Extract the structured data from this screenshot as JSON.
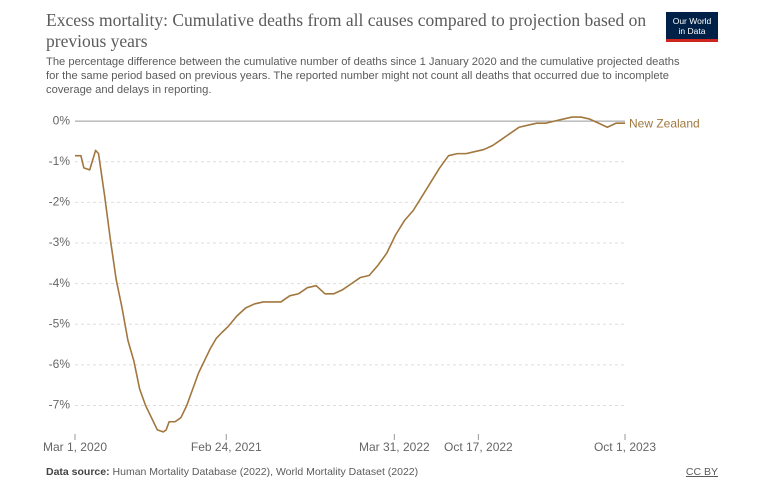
{
  "chart_data": {
    "type": "line",
    "title": "Excess mortality: Cumulative deaths from all causes compared to projection based on previous years",
    "subtitle": "The percentage difference between the cumulative number of deaths since 1 January 2020 and the cumulative projected deaths for the same period based on previous years. The reported number might not count all deaths that occurred due to incomplete coverage and delays in reporting.",
    "logo": [
      "Our World",
      "in Data"
    ],
    "source_label": "Data source:",
    "source": "Human Mortality Database (2022), World Mortality Dataset (2022)",
    "license": "CC BY",
    "x": [
      "2020-03-01",
      "2020-03-15",
      "2020-03-22",
      "2020-04-05",
      "2020-04-19",
      "2020-04-26",
      "2020-05-10",
      "2020-05-24",
      "2020-06-07",
      "2020-06-21",
      "2020-07-05",
      "2020-07-19",
      "2020-08-02",
      "2020-08-16",
      "2020-08-30",
      "2020-09-13",
      "2020-09-27",
      "2020-10-04",
      "2020-10-11",
      "2020-10-25",
      "2020-11-08",
      "2020-11-22",
      "2020-12-06",
      "2020-12-20",
      "2021-01-03",
      "2021-01-17",
      "2021-01-31",
      "2021-02-14",
      "2021-03-01",
      "2021-03-21",
      "2021-04-11",
      "2021-05-02",
      "2021-05-23",
      "2021-06-13",
      "2021-07-04",
      "2021-07-25",
      "2021-08-15",
      "2021-09-05",
      "2021-09-26",
      "2021-10-17",
      "2021-11-07",
      "2021-11-28",
      "2021-12-19",
      "2022-01-09",
      "2022-01-30",
      "2022-02-20",
      "2022-03-13",
      "2022-04-03",
      "2022-04-24",
      "2022-05-15",
      "2022-06-05",
      "2022-06-26",
      "2022-07-17",
      "2022-08-07",
      "2022-08-28",
      "2022-09-18",
      "2022-10-09",
      "2022-10-30",
      "2022-11-20",
      "2022-12-11",
      "2023-01-01",
      "2023-01-22",
      "2023-02-12",
      "2023-03-05",
      "2023-03-26",
      "2023-04-16",
      "2023-05-07",
      "2023-05-28",
      "2023-06-18",
      "2023-07-09",
      "2023-07-30",
      "2023-08-20",
      "2023-09-10",
      "2023-10-01"
    ],
    "series": [
      {
        "name": "New Zealand",
        "color": "#a2773e",
        "values": [
          -0.85,
          -0.85,
          -1.15,
          -1.2,
          -0.72,
          -0.8,
          -1.8,
          -2.9,
          -3.9,
          -4.6,
          -5.4,
          -5.9,
          -6.6,
          -7.0,
          -7.3,
          -7.6,
          -7.65,
          -7.6,
          -7.4,
          -7.4,
          -7.3,
          -7.0,
          -6.6,
          -6.2,
          -5.9,
          -5.6,
          -5.35,
          -5.2,
          -5.05,
          -4.8,
          -4.6,
          -4.5,
          -4.45,
          -4.45,
          -4.45,
          -4.3,
          -4.25,
          -4.1,
          -4.05,
          -4.25,
          -4.25,
          -4.15,
          -4.0,
          -3.85,
          -3.8,
          -3.55,
          -3.25,
          -2.8,
          -2.45,
          -2.2,
          -1.85,
          -1.5,
          -1.15,
          -0.85,
          -0.8,
          -0.8,
          -0.75,
          -0.7,
          -0.6,
          -0.45,
          -0.3,
          -0.15,
          -0.1,
          -0.05,
          -0.05,
          0.0,
          0.05,
          0.1,
          0.1,
          0.05,
          -0.05,
          -0.15,
          -0.05,
          -0.05
        ]
      }
    ],
    "xlim": [
      "2020-03-01",
      "2023-10-01"
    ],
    "xticks": [
      {
        "value": "2020-03-01",
        "label": "Mar 1, 2020"
      },
      {
        "value": "2021-02-24",
        "label": "Feb 24, 2021"
      },
      {
        "value": "2022-03-31",
        "label": "Mar 31, 2022"
      },
      {
        "value": "2022-10-17",
        "label": "Oct 17, 2022"
      },
      {
        "value": "2023-10-01",
        "label": "Oct 1, 2023"
      }
    ],
    "ylim": [
      -7.8,
      0.2
    ],
    "yticks": [
      {
        "value": 0,
        "label": "0%"
      },
      {
        "value": -1,
        "label": "-1%"
      },
      {
        "value": -2,
        "label": "-2%"
      },
      {
        "value": -3,
        "label": "-3%"
      },
      {
        "value": -4,
        "label": "-4%"
      },
      {
        "value": -5,
        "label": "-5%"
      },
      {
        "value": -6,
        "label": "-6%"
      },
      {
        "value": -7,
        "label": "-7%"
      }
    ],
    "grid": true
  }
}
